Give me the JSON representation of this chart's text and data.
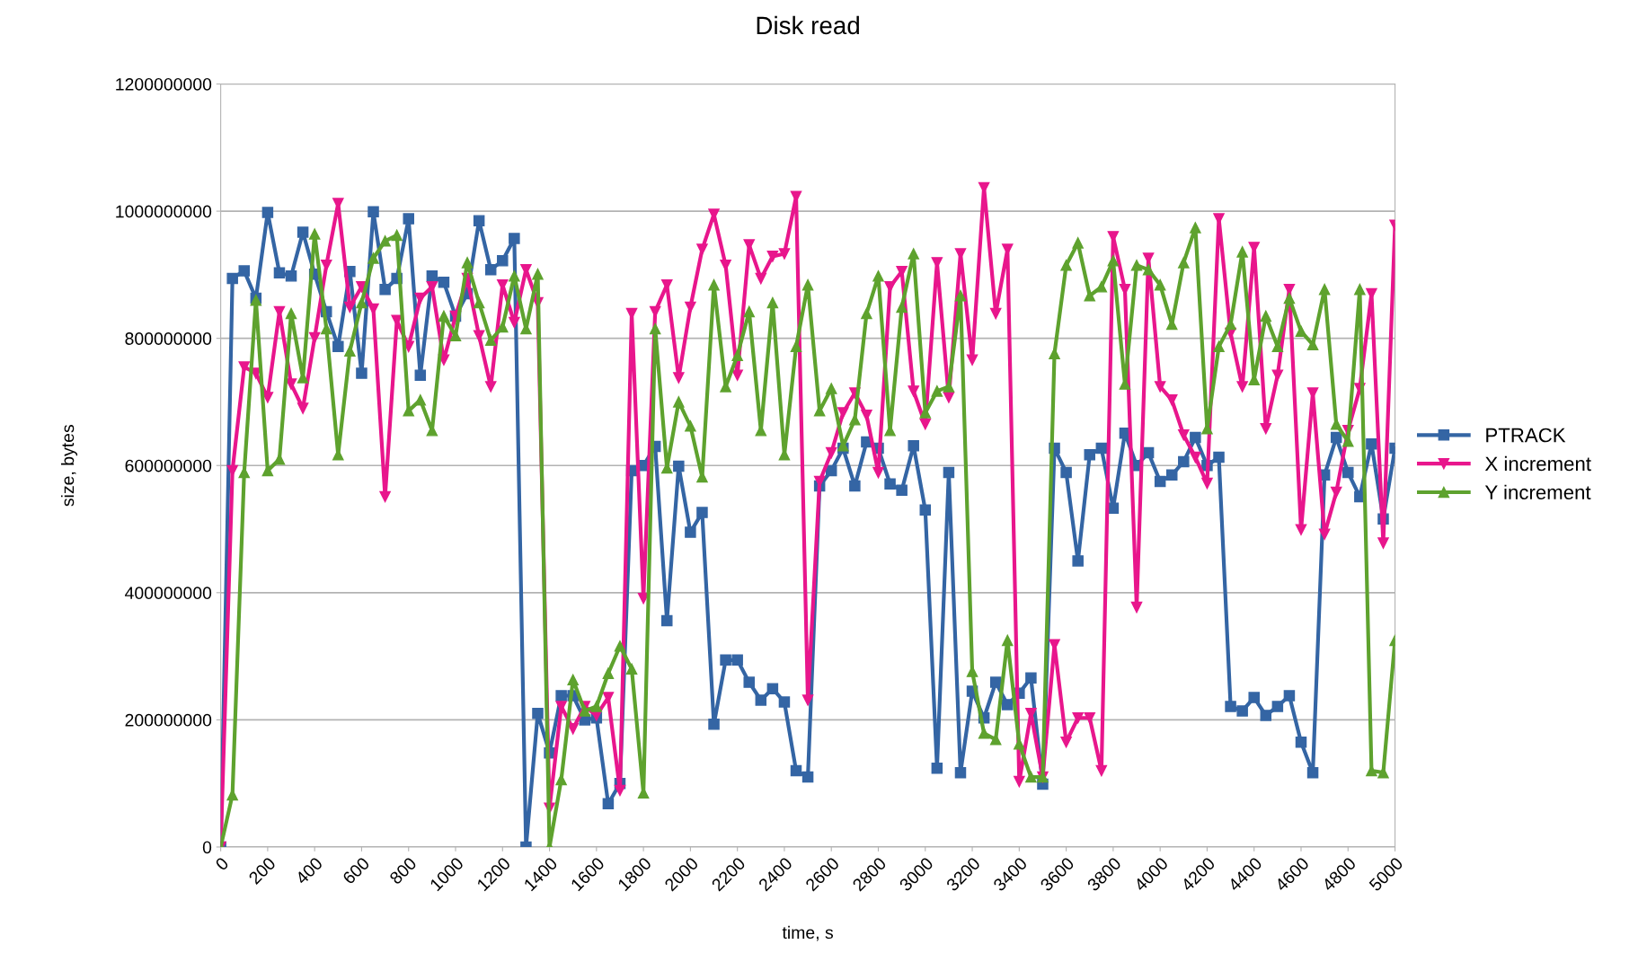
{
  "chart_data": {
    "type": "line",
    "title": "Disk read",
    "xlabel": "time, s",
    "ylabel": "size, bytes",
    "x": [
      0,
      50,
      100,
      150,
      200,
      250,
      300,
      350,
      400,
      450,
      500,
      550,
      600,
      650,
      700,
      750,
      800,
      850,
      900,
      950,
      1000,
      1050,
      1100,
      1150,
      1200,
      1250,
      1300,
      1350,
      1400,
      1450,
      1500,
      1550,
      1600,
      1650,
      1700,
      1750,
      1800,
      1850,
      1900,
      1950,
      2000,
      2050,
      2100,
      2150,
      2200,
      2250,
      2300,
      2350,
      2400,
      2450,
      2500,
      2550,
      2600,
      2650,
      2700,
      2750,
      2800,
      2850,
      2900,
      2950,
      3000,
      3050,
      3100,
      3150,
      3200,
      3250,
      3300,
      3350,
      3400,
      3450,
      3500,
      3550,
      3600,
      3650,
      3700,
      3750,
      3800,
      3850,
      3900,
      3950,
      4000,
      4050,
      4100,
      4150,
      4200,
      4250,
      4300,
      4350,
      4400,
      4450,
      4500,
      4550,
      4600,
      4650,
      4700,
      4750,
      4800,
      4850,
      4900,
      4950,
      5000
    ],
    "xlim": [
      0,
      5000
    ],
    "xticks": [
      0,
      200,
      400,
      600,
      800,
      1000,
      1200,
      1400,
      1600,
      1800,
      2000,
      2200,
      2400,
      2600,
      2800,
      3000,
      3200,
      3400,
      3600,
      3800,
      4000,
      4200,
      4400,
      4600,
      4800,
      5000
    ],
    "ylim": [
      0,
      1200000000
    ],
    "yticks": [
      0,
      200000000,
      400000000,
      600000000,
      800000000,
      1000000000,
      1200000000
    ],
    "grid": "y",
    "legend": "right",
    "line_style": "solid",
    "series": [
      {
        "name": "PTRACK",
        "color": "#3465a4",
        "marker": "square",
        "values": [
          0,
          894000000,
          906000000,
          863000000,
          998000000,
          903000000,
          898000000,
          967000000,
          901000000,
          842000000,
          787000000,
          905000000,
          745000000,
          999000000,
          877000000,
          894000000,
          988000000,
          742000000,
          898000000,
          888000000,
          835000000,
          870000000,
          985000000,
          908000000,
          922000000,
          957000000,
          0,
          210000000,
          148000000,
          238000000,
          238000000,
          200000000,
          203000000,
          68000000,
          100000000,
          592000000,
          600000000,
          630000000,
          356000000,
          599000000,
          495000000,
          526000000,
          193000000,
          294000000,
          294000000,
          259000000,
          231000000,
          249000000,
          228000000,
          120000000,
          110000000,
          568000000,
          592000000,
          627000000,
          568000000,
          637000000,
          627000000,
          571000000,
          561000000,
          631000000,
          530000000,
          124000000,
          589000000,
          117000000,
          245000000,
          203000000,
          259000000,
          224000000,
          242000000,
          266000000,
          99000000,
          627000000,
          589000000,
          450000000,
          617000000,
          627000000,
          533000000,
          651000000,
          600000000,
          620000000,
          575000000,
          585000000,
          606000000,
          644000000,
          600000000,
          613000000,
          221000000,
          214000000,
          235000000,
          207000000,
          221000000,
          238000000,
          165000000,
          117000000,
          585000000,
          644000000,
          589000000,
          551000000,
          634000000,
          516000000,
          627000000
        ]
      },
      {
        "name": "X increment",
        "color": "#e8168c",
        "marker": "triangle_down",
        "values": [
          0,
          592000000,
          755000000,
          745000000,
          707000000,
          842000000,
          728000000,
          690000000,
          801000000,
          915000000,
          1012000000,
          849000000,
          881000000,
          846000000,
          551000000,
          828000000,
          787000000,
          863000000,
          881000000,
          766000000,
          835000000,
          894000000,
          804000000,
          724000000,
          884000000,
          825000000,
          908000000,
          856000000,
          61000000,
          221000000,
          186000000,
          221000000,
          207000000,
          235000000,
          89000000,
          839000000,
          391000000,
          842000000,
          884000000,
          738000000,
          849000000,
          940000000,
          995000000,
          915000000,
          742000000,
          947000000,
          894000000,
          929000000,
          933000000,
          1023000000,
          231000000,
          575000000,
          620000000,
          683000000,
          714000000,
          679000000,
          589000000,
          881000000,
          905000000,
          717000000,
          665000000,
          919000000,
          707000000,
          933000000,
          766000000,
          1037000000,
          839000000,
          940000000,
          103000000,
          210000000,
          110000000,
          318000000,
          165000000,
          203000000,
          203000000,
          120000000,
          960000000,
          877000000,
          377000000,
          926000000,
          724000000,
          703000000,
          648000000,
          613000000,
          572000000,
          988000000,
          808000000,
          724000000,
          943000000,
          658000000,
          742000000,
          877000000,
          499000000,
          714000000,
          492000000,
          558000000,
          655000000,
          721000000,
          870000000,
          478000000,
          978000000
        ]
      },
      {
        "name": "Y increment",
        "color": "#5ea22e",
        "marker": "triangle",
        "values": [
          0,
          82000000,
          589000000,
          860000000,
          592000000,
          610000000,
          839000000,
          738000000,
          964000000,
          815000000,
          617000000,
          780000000,
          856000000,
          926000000,
          953000000,
          962000000,
          686000000,
          703000000,
          655000000,
          835000000,
          804000000,
          919000000,
          856000000,
          797000000,
          818000000,
          898000000,
          815000000,
          901000000,
          0,
          106000000,
          263000000,
          214000000,
          221000000,
          273000000,
          316000000,
          280000000,
          85000000,
          815000000,
          596000000,
          700000000,
          662000000,
          582000000,
          884000000,
          724000000,
          773000000,
          842000000,
          655000000,
          856000000,
          617000000,
          787000000,
          884000000,
          686000000,
          721000000,
          631000000,
          672000000,
          839000000,
          898000000,
          655000000,
          849000000,
          933000000,
          683000000,
          717000000,
          724000000,
          867000000,
          276000000,
          179000000,
          169000000,
          325000000,
          162000000,
          110000000,
          110000000,
          776000000,
          915000000,
          950000000,
          867000000,
          881000000,
          922000000,
          728000000,
          915000000,
          908000000,
          884000000,
          822000000,
          919000000,
          974000000,
          658000000,
          787000000,
          822000000,
          936000000,
          735000000,
          835000000,
          787000000,
          863000000,
          811000000,
          790000000,
          877000000,
          665000000,
          638000000,
          877000000,
          120000000,
          117000000,
          325000000
        ]
      }
    ]
  }
}
